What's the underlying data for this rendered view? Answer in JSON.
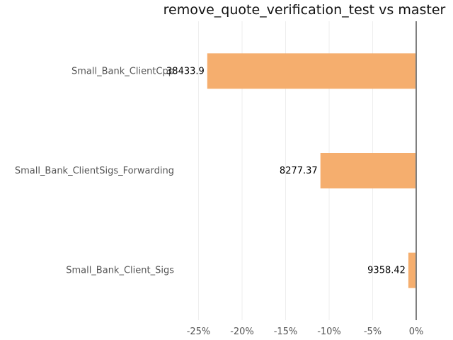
{
  "chart_data": {
    "type": "bar",
    "orientation": "horizontal",
    "title": "remove_quote_verification_test vs master",
    "xlabel": "",
    "ylabel": "",
    "categories": [
      "Small_Bank_ClientCpp",
      "Small_Bank_ClientSigs_Forwarding",
      "Small_Bank_Client_Sigs"
    ],
    "values": [
      -24.0,
      -11.0,
      -0.9
    ],
    "data_labels": [
      "38433.9",
      "8277.37",
      "9358.42"
    ],
    "x_ticks": [
      -25,
      -20,
      -15,
      -10,
      -5,
      0
    ],
    "x_tick_labels": [
      "-25%",
      "-20%",
      "-15%",
      "-10%",
      "-5%",
      "0%"
    ],
    "xlim": [
      -25,
      0
    ],
    "grid": true,
    "colors": {
      "bar": "#f5ae6e",
      "zero_line": "#808080",
      "grid": "#eeeeee"
    }
  }
}
